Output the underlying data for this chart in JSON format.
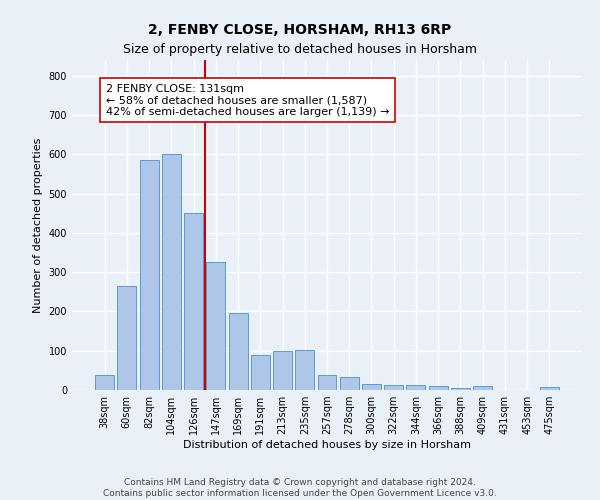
{
  "title": "2, FENBY CLOSE, HORSHAM, RH13 6RP",
  "subtitle": "Size of property relative to detached houses in Horsham",
  "xlabel": "Distribution of detached houses by size in Horsham",
  "ylabel": "Number of detached properties",
  "categories": [
    "38sqm",
    "60sqm",
    "82sqm",
    "104sqm",
    "126sqm",
    "147sqm",
    "169sqm",
    "191sqm",
    "213sqm",
    "235sqm",
    "257sqm",
    "278sqm",
    "300sqm",
    "322sqm",
    "344sqm",
    "366sqm",
    "388sqm",
    "409sqm",
    "431sqm",
    "453sqm",
    "475sqm"
  ],
  "values": [
    38,
    265,
    585,
    600,
    450,
    325,
    195,
    90,
    100,
    103,
    38,
    33,
    15,
    14,
    12,
    10,
    5,
    9,
    0,
    0,
    7
  ],
  "bar_color": "#aec6e8",
  "bar_edge_color": "#5b9bd5",
  "vline_x": 4.5,
  "vline_color": "#cc0000",
  "annotation_text": "2 FENBY CLOSE: 131sqm\n← 58% of detached houses are smaller (1,587)\n42% of semi-detached houses are larger (1,139) →",
  "annotation_box_color": "#ffffff",
  "annotation_box_edge": "#cc0000",
  "ylim": [
    0,
    840
  ],
  "yticks": [
    0,
    100,
    200,
    300,
    400,
    500,
    600,
    700,
    800
  ],
  "bg_color": "#eaf0f8",
  "plot_bg_color": "#eaf0f8",
  "grid_color": "#ffffff",
  "footnote": "Contains HM Land Registry data © Crown copyright and database right 2024.\nContains public sector information licensed under the Open Government Licence v3.0.",
  "title_fontsize": 10,
  "subtitle_fontsize": 9,
  "xlabel_fontsize": 8,
  "ylabel_fontsize": 8,
  "tick_fontsize": 7,
  "annotation_fontsize": 8,
  "footnote_fontsize": 6.5
}
